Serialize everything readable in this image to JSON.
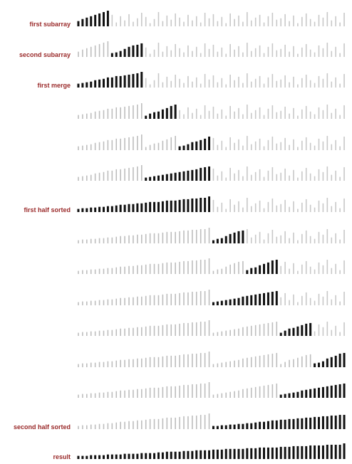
{
  "title": "",
  "labels": [
    "first subarray",
    "second subarray",
    "first merge",
    "",
    "",
    "",
    "first half sorted",
    "",
    "",
    "",
    "",
    "",
    "",
    "second half sorted",
    "result"
  ],
  "colors": {
    "label": "#9a2a2a",
    "active_bar": "#111111",
    "sorted_bar": "#bdbdbd",
    "unsorted_bar": "#c8c8c8"
  },
  "chart_data": {
    "type": "bar",
    "description_of_marks": "each row shows the same 64-element array as vertical bars; dark bars are the elements involved in the current merge step",
    "n": 64,
    "values": [
      12,
      18,
      22,
      26,
      30,
      34,
      38,
      42,
      30,
      8,
      26,
      14,
      32,
      10,
      20,
      36,
      24,
      6,
      18,
      38,
      12,
      28,
      16,
      34,
      22,
      10,
      30,
      14,
      26,
      8,
      36,
      20,
      32,
      12,
      24,
      6,
      34,
      18,
      28,
      10,
      38,
      14,
      22,
      30,
      8,
      26,
      36,
      16,
      20,
      32,
      12,
      28,
      6,
      24,
      34,
      18,
      10,
      30,
      22,
      38,
      14,
      26,
      8,
      36
    ],
    "rows": [
      {
        "label_index": 0,
        "dark": [
          0,
          8
        ],
        "sorted_gray": []
      },
      {
        "label_index": 1,
        "dark": [
          8,
          16
        ],
        "sorted_gray": [
          [
            0,
            8
          ]
        ]
      },
      {
        "label_index": 2,
        "dark": [
          0,
          16
        ],
        "sorted_gray": []
      },
      {
        "label_index": 3,
        "dark": [
          16,
          24
        ],
        "sorted_gray": [
          [
            0,
            16
          ]
        ]
      },
      {
        "label_index": 4,
        "dark": [
          24,
          32
        ],
        "sorted_gray": [
          [
            0,
            16
          ],
          [
            16,
            24
          ]
        ]
      },
      {
        "label_index": 5,
        "dark": [
          16,
          32
        ],
        "sorted_gray": [
          [
            0,
            16
          ]
        ]
      },
      {
        "label_index": 6,
        "dark": [
          0,
          32
        ],
        "sorted_gray": []
      },
      {
        "label_index": 7,
        "dark": [
          32,
          40
        ],
        "sorted_gray": [
          [
            0,
            32
          ]
        ]
      },
      {
        "label_index": 8,
        "dark": [
          40,
          48
        ],
        "sorted_gray": [
          [
            0,
            32
          ],
          [
            32,
            40
          ]
        ]
      },
      {
        "label_index": 9,
        "dark": [
          32,
          48
        ],
        "sorted_gray": [
          [
            0,
            32
          ]
        ]
      },
      {
        "label_index": 10,
        "dark": [
          48,
          56
        ],
        "sorted_gray": [
          [
            0,
            32
          ],
          [
            32,
            48
          ]
        ]
      },
      {
        "label_index": 11,
        "dark": [
          56,
          64
        ],
        "sorted_gray": [
          [
            0,
            32
          ],
          [
            32,
            48
          ],
          [
            48,
            56
          ]
        ]
      },
      {
        "label_index": 12,
        "dark": [
          48,
          64
        ],
        "sorted_gray": [
          [
            0,
            32
          ],
          [
            32,
            48
          ]
        ]
      },
      {
        "label_index": 13,
        "dark": [
          32,
          64
        ],
        "sorted_gray": [
          [
            0,
            32
          ]
        ]
      },
      {
        "label_index": 14,
        "dark": [
          0,
          64
        ],
        "sorted_gray": []
      }
    ]
  }
}
